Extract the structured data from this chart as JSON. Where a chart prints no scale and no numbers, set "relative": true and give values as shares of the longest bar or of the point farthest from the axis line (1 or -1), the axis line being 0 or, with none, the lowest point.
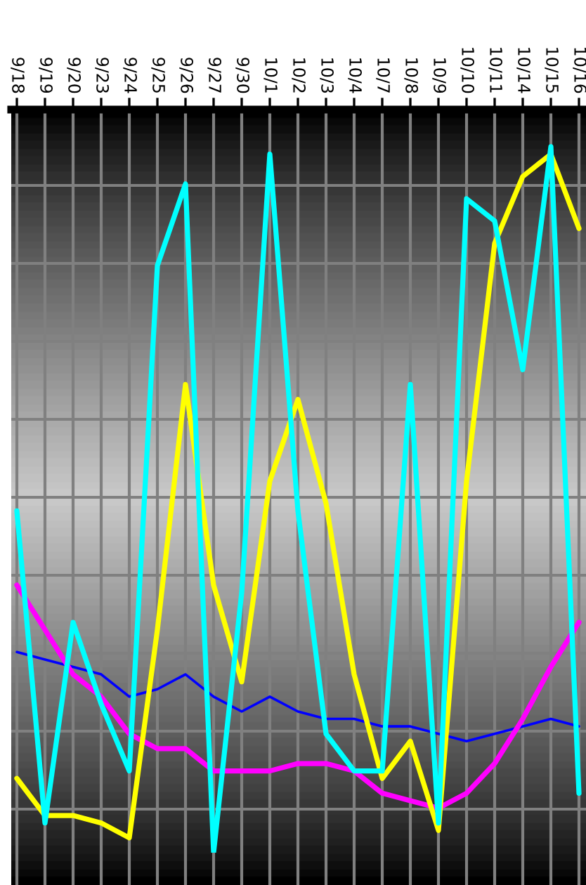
{
  "chart_data": {
    "type": "line",
    "relative": true,
    "grid": true,
    "legend": false,
    "categories": [
      "9/18",
      "9/19",
      "9/20",
      "9/23",
      "9/24",
      "9/25",
      "9/26",
      "9/27",
      "9/30",
      "10/1",
      "10/2",
      "10/3",
      "10/4",
      "10/7",
      "10/8",
      "10/9",
      "10/10",
      "10/11",
      "10/14",
      "10/15",
      "10/16"
    ],
    "series": [
      {
        "color": "#0000ff",
        "values": [
          -0.73,
          -0.74,
          -0.75,
          -0.76,
          -0.79,
          -0.78,
          -0.76,
          -0.79,
          -0.81,
          -0.79,
          -0.81,
          -0.82,
          -0.82,
          -0.83,
          -0.83,
          -0.84,
          -0.85,
          -0.84,
          -0.83,
          -0.82,
          -0.83
        ]
      },
      {
        "color": "#ff00ff",
        "values": [
          -0.64,
          -0.7,
          -0.76,
          -0.79,
          -0.84,
          -0.86,
          -0.86,
          -0.89,
          -0.89,
          -0.89,
          -0.88,
          -0.88,
          -0.89,
          -0.92,
          -0.93,
          -0.94,
          -0.92,
          -0.88,
          -0.82,
          -0.75,
          -0.69
        ]
      },
      {
        "color": "#ffff00",
        "values": [
          -0.9,
          -0.95,
          -0.95,
          -0.96,
          -0.98,
          -0.7,
          -0.37,
          -0.64,
          -0.77,
          -0.5,
          -0.39,
          -0.53,
          -0.76,
          -0.9,
          -0.85,
          -0.97,
          -0.5,
          -0.18,
          -0.09,
          -0.06,
          -0.16
        ]
      },
      {
        "color": "#00ffff",
        "values": [
          -0.54,
          -0.96,
          -0.69,
          -0.8,
          -0.89,
          -0.21,
          -0.1,
          -1,
          -0.65,
          -0.06,
          -0.54,
          -0.84,
          -0.89,
          -0.89,
          -0.37,
          -0.96,
          -0.12,
          -0.15,
          -0.35,
          -0.05,
          -0.92
        ]
      }
    ]
  }
}
